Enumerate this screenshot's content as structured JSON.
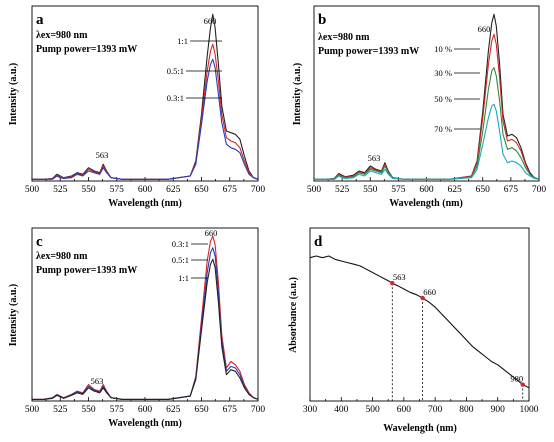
{
  "chart_data": [
    {
      "type": "line",
      "panel": "a",
      "conditions": [
        "λex=980 nm",
        "Pump power=1393 mW"
      ],
      "xlabel": "Wavelength (nm)",
      "ylabel": "Intensity (a.u.)",
      "xlim": [
        500,
        700
      ],
      "xticks": [
        500,
        525,
        550,
        575,
        600,
        625,
        650,
        675,
        700
      ],
      "ylim": [
        0,
        1.05
      ],
      "annotations": [
        "563",
        "660"
      ],
      "series": [
        {
          "name": "1:1",
          "color": "#222222",
          "x": [
            500,
            510,
            518,
            522,
            525,
            528,
            535,
            540,
            545,
            550,
            555,
            560,
            563,
            566,
            570,
            580,
            600,
            620,
            640,
            645,
            650,
            655,
            658,
            660,
            662,
            665,
            668,
            672,
            676,
            680,
            684,
            688,
            692,
            696,
            700
          ],
          "values": [
            0.01,
            0.01,
            0.015,
            0.04,
            0.03,
            0.02,
            0.03,
            0.05,
            0.04,
            0.08,
            0.06,
            0.05,
            0.1,
            0.06,
            0.02,
            0.01,
            0.01,
            0.01,
            0.03,
            0.12,
            0.4,
            0.75,
            0.92,
            1.0,
            0.92,
            0.7,
            0.45,
            0.3,
            0.29,
            0.28,
            0.25,
            0.15,
            0.06,
            0.02,
            0.01
          ]
        },
        {
          "name": "0.5:1",
          "color": "#d62728",
          "x": [
            500,
            510,
            518,
            522,
            525,
            528,
            535,
            540,
            545,
            550,
            555,
            560,
            563,
            566,
            570,
            580,
            600,
            620,
            640,
            645,
            650,
            655,
            658,
            660,
            662,
            665,
            668,
            672,
            676,
            680,
            684,
            688,
            692,
            696,
            700
          ],
          "values": [
            0.01,
            0.01,
            0.012,
            0.035,
            0.025,
            0.018,
            0.025,
            0.045,
            0.035,
            0.07,
            0.055,
            0.045,
            0.09,
            0.055,
            0.02,
            0.01,
            0.01,
            0.01,
            0.03,
            0.11,
            0.37,
            0.66,
            0.78,
            0.82,
            0.76,
            0.6,
            0.4,
            0.26,
            0.24,
            0.23,
            0.2,
            0.12,
            0.05,
            0.02,
            0.01
          ]
        },
        {
          "name": "0.3:1",
          "color": "#2b3cb8",
          "x": [
            500,
            510,
            518,
            522,
            525,
            528,
            535,
            540,
            545,
            550,
            555,
            560,
            563,
            566,
            570,
            580,
            600,
            620,
            640,
            645,
            650,
            655,
            658,
            660,
            662,
            665,
            668,
            672,
            676,
            680,
            684,
            688,
            692,
            696,
            700
          ],
          "values": [
            0.01,
            0.01,
            0.01,
            0.03,
            0.02,
            0.015,
            0.02,
            0.04,
            0.03,
            0.06,
            0.05,
            0.04,
            0.08,
            0.05,
            0.02,
            0.01,
            0.01,
            0.01,
            0.03,
            0.1,
            0.34,
            0.6,
            0.7,
            0.73,
            0.68,
            0.52,
            0.35,
            0.22,
            0.2,
            0.19,
            0.17,
            0.1,
            0.04,
            0.02,
            0.01
          ]
        }
      ]
    },
    {
      "type": "line",
      "panel": "b",
      "conditions": [
        "λex=980 nm",
        "Pump power=1393 mW"
      ],
      "xlabel": "Wavelength (nm)",
      "ylabel": "Intensity (a.u.)",
      "xlim": [
        500,
        700
      ],
      "xticks": [
        500,
        525,
        550,
        575,
        600,
        625,
        650,
        675,
        700
      ],
      "ylim": [
        0,
        1.05
      ],
      "annotations": [
        "563",
        "660"
      ],
      "series": [
        {
          "name": "10 %",
          "color": "#222222",
          "x": [
            500,
            510,
            518,
            522,
            525,
            528,
            535,
            540,
            545,
            550,
            555,
            560,
            563,
            566,
            570,
            580,
            600,
            620,
            640,
            645,
            650,
            655,
            658,
            660,
            662,
            665,
            668,
            672,
            676,
            680,
            684,
            688,
            692,
            696,
            700
          ],
          "values": [
            0.01,
            0.01,
            0.015,
            0.045,
            0.035,
            0.025,
            0.035,
            0.06,
            0.05,
            0.09,
            0.07,
            0.06,
            0.11,
            0.06,
            0.02,
            0.01,
            0.01,
            0.01,
            0.03,
            0.12,
            0.42,
            0.78,
            0.95,
            1.0,
            0.93,
            0.7,
            0.4,
            0.27,
            0.28,
            0.26,
            0.2,
            0.11,
            0.05,
            0.02,
            0.01
          ]
        },
        {
          "name": "30 %",
          "color": "#d62728",
          "x": [
            500,
            510,
            518,
            522,
            525,
            528,
            535,
            540,
            545,
            550,
            555,
            560,
            563,
            566,
            570,
            580,
            600,
            620,
            640,
            645,
            650,
            655,
            658,
            660,
            662,
            665,
            668,
            672,
            676,
            680,
            684,
            688,
            692,
            696,
            700
          ],
          "values": [
            0.01,
            0.01,
            0.012,
            0.04,
            0.03,
            0.022,
            0.03,
            0.055,
            0.045,
            0.08,
            0.065,
            0.055,
            0.1,
            0.055,
            0.02,
            0.01,
            0.01,
            0.01,
            0.03,
            0.11,
            0.38,
            0.7,
            0.84,
            0.88,
            0.82,
            0.62,
            0.36,
            0.24,
            0.25,
            0.23,
            0.18,
            0.1,
            0.04,
            0.02,
            0.01
          ]
        },
        {
          "name": "50 %",
          "color": "#2e8b3e",
          "x": [
            500,
            510,
            518,
            522,
            525,
            528,
            535,
            540,
            545,
            550,
            555,
            560,
            563,
            566,
            570,
            580,
            600,
            620,
            640,
            645,
            650,
            655,
            658,
            660,
            662,
            665,
            668,
            672,
            676,
            680,
            684,
            688,
            692,
            696,
            700
          ],
          "values": [
            0.01,
            0.01,
            0.01,
            0.035,
            0.025,
            0.02,
            0.025,
            0.05,
            0.04,
            0.07,
            0.06,
            0.05,
            0.09,
            0.05,
            0.02,
            0.01,
            0.01,
            0.01,
            0.025,
            0.09,
            0.3,
            0.55,
            0.66,
            0.68,
            0.63,
            0.48,
            0.28,
            0.19,
            0.2,
            0.18,
            0.14,
            0.08,
            0.04,
            0.02,
            0.01
          ]
        },
        {
          "name": "70 %",
          "color": "#1fa5c9",
          "x": [
            500,
            510,
            518,
            522,
            525,
            528,
            535,
            540,
            545,
            550,
            555,
            560,
            563,
            566,
            570,
            580,
            600,
            620,
            640,
            645,
            650,
            655,
            658,
            660,
            662,
            665,
            668,
            672,
            676,
            680,
            684,
            688,
            692,
            696,
            700
          ],
          "values": [
            0.01,
            0.01,
            0.01,
            0.03,
            0.02,
            0.015,
            0.02,
            0.04,
            0.03,
            0.06,
            0.05,
            0.04,
            0.07,
            0.04,
            0.015,
            0.01,
            0.01,
            0.01,
            0.02,
            0.07,
            0.22,
            0.38,
            0.45,
            0.46,
            0.42,
            0.3,
            0.16,
            0.11,
            0.12,
            0.11,
            0.09,
            0.05,
            0.03,
            0.015,
            0.01
          ]
        }
      ]
    },
    {
      "type": "line",
      "panel": "c",
      "conditions": [
        "λex=980 nm",
        "Pump power=1393 mW"
      ],
      "xlabel": "Wavelength (nm)",
      "ylabel": "Intensity (a.u.)",
      "xlim": [
        500,
        700
      ],
      "xticks": [
        500,
        525,
        550,
        575,
        600,
        625,
        650,
        675,
        700
      ],
      "ylim": [
        0,
        1.05
      ],
      "annotations": [
        "563",
        "660"
      ],
      "series": [
        {
          "name": "0.3:1",
          "color": "#d62728",
          "x": [
            500,
            510,
            518,
            522,
            525,
            528,
            535,
            540,
            545,
            550,
            555,
            560,
            563,
            566,
            570,
            580,
            600,
            620,
            640,
            645,
            650,
            655,
            658,
            660,
            662,
            665,
            668,
            672,
            676,
            680,
            684,
            688,
            692,
            696,
            700
          ],
          "values": [
            0.01,
            0.01,
            0.02,
            0.04,
            0.03,
            0.02,
            0.04,
            0.06,
            0.05,
            0.1,
            0.07,
            0.06,
            0.1,
            0.06,
            0.02,
            0.01,
            0.01,
            0.01,
            0.03,
            0.15,
            0.5,
            0.85,
            0.97,
            1.0,
            0.95,
            0.72,
            0.4,
            0.2,
            0.24,
            0.22,
            0.18,
            0.1,
            0.05,
            0.02,
            0.01
          ]
        },
        {
          "name": "0.5:1",
          "color": "#2b3cb8",
          "x": [
            500,
            510,
            518,
            522,
            525,
            528,
            535,
            540,
            545,
            550,
            555,
            560,
            563,
            566,
            570,
            580,
            600,
            620,
            640,
            645,
            650,
            655,
            658,
            660,
            662,
            665,
            668,
            672,
            676,
            680,
            684,
            688,
            692,
            696,
            700
          ],
          "values": [
            0.01,
            0.01,
            0.018,
            0.037,
            0.028,
            0.018,
            0.037,
            0.055,
            0.045,
            0.09,
            0.065,
            0.055,
            0.09,
            0.055,
            0.02,
            0.01,
            0.01,
            0.01,
            0.03,
            0.14,
            0.46,
            0.78,
            0.9,
            0.93,
            0.88,
            0.66,
            0.36,
            0.18,
            0.21,
            0.2,
            0.16,
            0.09,
            0.04,
            0.02,
            0.01
          ]
        },
        {
          "name": "1:1",
          "color": "#222222",
          "x": [
            500,
            510,
            518,
            522,
            525,
            528,
            535,
            540,
            545,
            550,
            555,
            560,
            563,
            566,
            570,
            580,
            600,
            620,
            640,
            645,
            650,
            655,
            658,
            660,
            662,
            665,
            668,
            672,
            676,
            680,
            684,
            688,
            692,
            696,
            700
          ],
          "values": [
            0.01,
            0.01,
            0.016,
            0.034,
            0.026,
            0.016,
            0.034,
            0.05,
            0.04,
            0.08,
            0.06,
            0.05,
            0.08,
            0.05,
            0.02,
            0.01,
            0.01,
            0.01,
            0.03,
            0.13,
            0.43,
            0.72,
            0.83,
            0.86,
            0.81,
            0.6,
            0.33,
            0.16,
            0.19,
            0.18,
            0.14,
            0.08,
            0.04,
            0.02,
            0.01
          ]
        }
      ]
    },
    {
      "type": "line",
      "panel": "d",
      "xlabel": "Wavelength (nm)",
      "ylabel": "Absorbance (a.u.)",
      "xlim": [
        300,
        1000
      ],
      "xticks": [
        300,
        400,
        500,
        600,
        700,
        800,
        900,
        1000
      ],
      "ylim": [
        0,
        1.05
      ],
      "annotations": [
        "563",
        "660",
        "980"
      ],
      "marked_points": [
        {
          "label": "563",
          "x": 563,
          "y": 0.715
        },
        {
          "label": "660",
          "x": 660,
          "y": 0.625
        },
        {
          "label": "980",
          "x": 980,
          "y": 0.1
        }
      ],
      "series": [
        {
          "name": "",
          "color": "#111111",
          "x": [
            300,
            320,
            340,
            360,
            380,
            400,
            420,
            440,
            460,
            480,
            500,
            520,
            540,
            560,
            563,
            580,
            600,
            620,
            640,
            660,
            680,
            700,
            720,
            740,
            760,
            780,
            800,
            820,
            840,
            860,
            880,
            900,
            920,
            940,
            960,
            980,
            1000
          ],
          "values": [
            0.87,
            0.88,
            0.87,
            0.88,
            0.86,
            0.85,
            0.84,
            0.83,
            0.82,
            0.8,
            0.78,
            0.76,
            0.74,
            0.72,
            0.715,
            0.7,
            0.68,
            0.66,
            0.645,
            0.625,
            0.6,
            0.57,
            0.53,
            0.49,
            0.45,
            0.41,
            0.37,
            0.33,
            0.3,
            0.27,
            0.24,
            0.22,
            0.19,
            0.16,
            0.13,
            0.1,
            0.08
          ]
        }
      ]
    }
  ]
}
